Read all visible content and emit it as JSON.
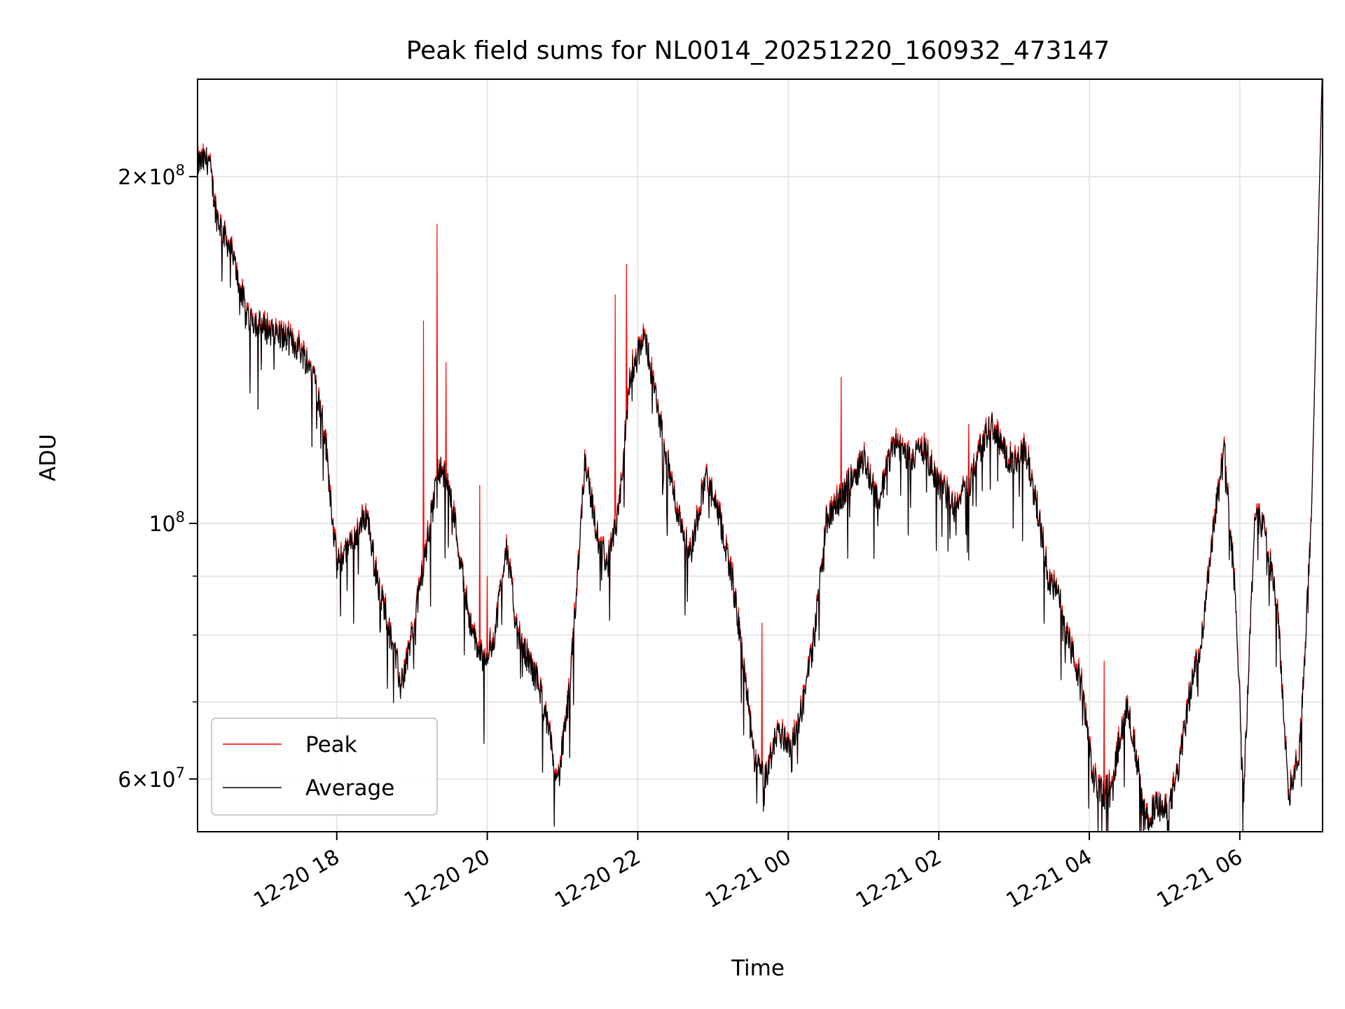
{
  "chart_data": {
    "type": "line",
    "title": "Peak field sums for NL0014_20251220_160932_473147",
    "xlabel": "Time",
    "ylabel": "ADU",
    "yscale": "log",
    "grid": true,
    "legend_position": "lower-left",
    "x_unit": "hours since 2025-12-20 00:00",
    "xlim": [
      16.15,
      31.1
    ],
    "ylim": [
      54000000,
      243000000
    ],
    "x_ticks": [
      {
        "value": 18,
        "label": "12-20 18"
      },
      {
        "value": 20,
        "label": "12-20 20"
      },
      {
        "value": 22,
        "label": "12-20 22"
      },
      {
        "value": 24,
        "label": "12-21 00"
      },
      {
        "value": 26,
        "label": "12-21 02"
      },
      {
        "value": 28,
        "label": "12-21 04"
      },
      {
        "value": 30,
        "label": "12-21 06"
      }
    ],
    "y_ticks": [
      {
        "value": 60000000,
        "mant": "6",
        "exp": "7"
      },
      {
        "value": 100000000,
        "mant": "",
        "exp": "8"
      },
      {
        "value": 200000000,
        "mant": "2",
        "exp": "8"
      }
    ],
    "y_minor_ticks": [
      70000000,
      80000000,
      90000000
    ],
    "series": [
      {
        "name": "Peak",
        "color": "#ff0000"
      },
      {
        "name": "Average",
        "color": "#000000"
      }
    ],
    "average_anchors": [
      [
        16.15,
        205000000
      ],
      [
        16.3,
        207000000
      ],
      [
        16.4,
        185000000
      ],
      [
        16.6,
        172000000
      ],
      [
        16.8,
        152000000
      ],
      [
        17.0,
        148000000
      ],
      [
        17.3,
        145000000
      ],
      [
        17.5,
        142000000
      ],
      [
        17.7,
        135000000
      ],
      [
        17.85,
        118000000
      ],
      [
        18.0,
        92000000
      ],
      [
        18.2,
        96000000
      ],
      [
        18.4,
        102000000
      ],
      [
        18.55,
        88000000
      ],
      [
        18.7,
        82000000
      ],
      [
        18.85,
        72000000
      ],
      [
        19.0,
        80000000
      ],
      [
        19.2,
        96000000
      ],
      [
        19.35,
        112000000
      ],
      [
        19.5,
        108000000
      ],
      [
        19.65,
        92000000
      ],
      [
        19.8,
        80000000
      ],
      [
        19.95,
        76000000
      ],
      [
        20.1,
        80000000
      ],
      [
        20.25,
        96000000
      ],
      [
        20.4,
        80000000
      ],
      [
        20.55,
        76000000
      ],
      [
        20.7,
        72000000
      ],
      [
        20.85,
        64000000
      ],
      [
        20.95,
        60000000
      ],
      [
        21.1,
        72000000
      ],
      [
        21.3,
        114000000
      ],
      [
        21.45,
        98000000
      ],
      [
        21.6,
        92000000
      ],
      [
        21.75,
        102000000
      ],
      [
        21.9,
        135000000
      ],
      [
        22.1,
        145000000
      ],
      [
        22.3,
        122000000
      ],
      [
        22.5,
        104000000
      ],
      [
        22.7,
        94000000
      ],
      [
        22.9,
        110000000
      ],
      [
        23.1,
        100000000
      ],
      [
        23.25,
        90000000
      ],
      [
        23.4,
        76000000
      ],
      [
        23.55,
        62000000
      ],
      [
        23.7,
        60000000
      ],
      [
        23.85,
        66000000
      ],
      [
        24.05,
        64000000
      ],
      [
        24.2,
        70000000
      ],
      [
        24.35,
        80000000
      ],
      [
        24.5,
        100000000
      ],
      [
        24.65,
        104000000
      ],
      [
        24.8,
        108000000
      ],
      [
        25.0,
        114000000
      ],
      [
        25.2,
        104000000
      ],
      [
        25.4,
        118000000
      ],
      [
        25.6,
        114000000
      ],
      [
        25.8,
        116000000
      ],
      [
        26.0,
        108000000
      ],
      [
        26.2,
        104000000
      ],
      [
        26.4,
        108000000
      ],
      [
        26.55,
        116000000
      ],
      [
        26.7,
        122000000
      ],
      [
        26.85,
        116000000
      ],
      [
        27.0,
        112000000
      ],
      [
        27.15,
        116000000
      ],
      [
        27.3,
        104000000
      ],
      [
        27.45,
        90000000
      ],
      [
        27.6,
        86000000
      ],
      [
        27.75,
        78000000
      ],
      [
        27.9,
        72000000
      ],
      [
        28.05,
        60000000
      ],
      [
        28.2,
        58000000
      ],
      [
        28.35,
        62000000
      ],
      [
        28.5,
        70000000
      ],
      [
        28.6,
        64000000
      ],
      [
        28.75,
        55000000
      ],
      [
        28.9,
        57000000
      ],
      [
        29.05,
        56000000
      ],
      [
        29.2,
        62000000
      ],
      [
        29.35,
        72000000
      ],
      [
        29.5,
        80000000
      ],
      [
        29.65,
        100000000
      ],
      [
        29.8,
        116000000
      ],
      [
        29.95,
        85000000
      ],
      [
        30.05,
        58000000
      ],
      [
        30.2,
        102000000
      ],
      [
        30.35,
        98000000
      ],
      [
        30.5,
        84000000
      ],
      [
        30.65,
        58000000
      ],
      [
        30.8,
        64000000
      ],
      [
        30.95,
        100000000
      ],
      [
        31.1,
        255000000
      ]
    ]
  }
}
